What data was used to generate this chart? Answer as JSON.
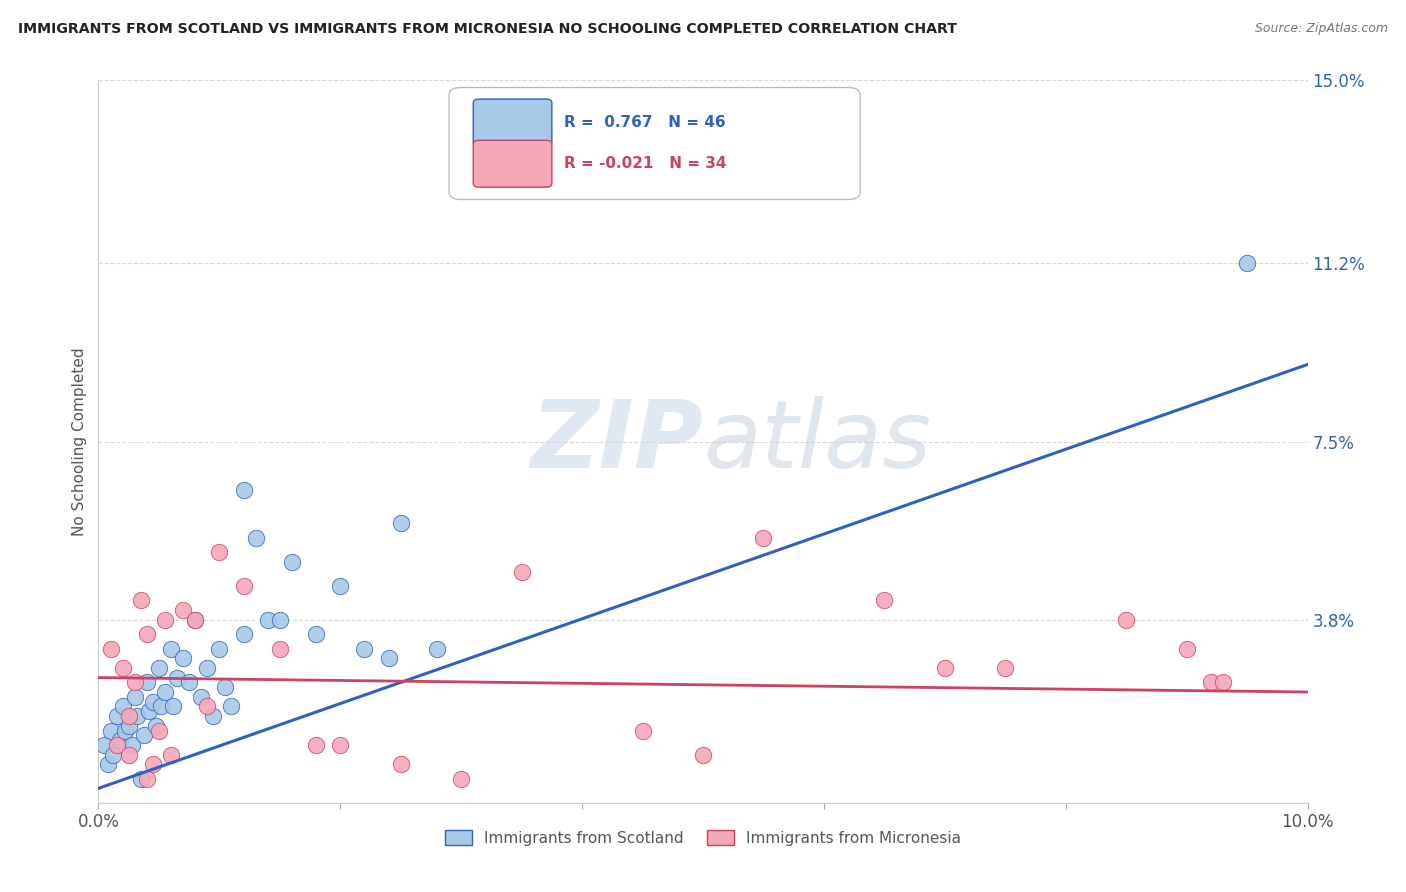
{
  "title": "IMMIGRANTS FROM SCOTLAND VS IMMIGRANTS FROM MICRONESIA NO SCHOOLING COMPLETED CORRELATION CHART",
  "source": "Source: ZipAtlas.com",
  "ylabel": "No Schooling Completed",
  "xlim": [
    0.0,
    10.0
  ],
  "ylim": [
    0.0,
    15.0
  ],
  "xtick_vals": [
    0.0,
    2.0,
    4.0,
    6.0,
    8.0,
    10.0
  ],
  "xtick_labels": [
    "0.0%",
    "",
    "",
    "",
    "",
    "10.0%"
  ],
  "ytick_vals": [
    0.0,
    3.8,
    7.5,
    11.2,
    15.0
  ],
  "ytick_labels": [
    "",
    "3.8%",
    "7.5%",
    "11.2%",
    "15.0%"
  ],
  "scotland_color": "#a8c8e8",
  "micronesia_color": "#f4a8b8",
  "scotland_line_color": "#3060c0",
  "micronesia_line_color": "#d04060",
  "legend_r_scotland": "0.767",
  "legend_n_scotland": "46",
  "legend_r_micronesia": "-0.021",
  "legend_n_micronesia": "34",
  "watermark": "ZIPatlas",
  "scotland_x": [
    0.05,
    0.08,
    0.1,
    0.12,
    0.15,
    0.18,
    0.2,
    0.22,
    0.25,
    0.28,
    0.3,
    0.32,
    0.35,
    0.38,
    0.4,
    0.42,
    0.45,
    0.48,
    0.5,
    0.52,
    0.55,
    0.6,
    0.62,
    0.65,
    0.7,
    0.75,
    0.8,
    0.85,
    0.9,
    0.95,
    1.0,
    1.05,
    1.1,
    1.2,
    1.3,
    1.4,
    1.5,
    1.6,
    1.8,
    2.0,
    2.2,
    2.4,
    2.5,
    2.8,
    9.5,
    1.2
  ],
  "scotland_y": [
    1.2,
    0.8,
    1.5,
    1.0,
    1.8,
    1.3,
    2.0,
    1.5,
    1.6,
    1.2,
    2.2,
    1.8,
    0.5,
    1.4,
    2.5,
    1.9,
    2.1,
    1.6,
    2.8,
    2.0,
    2.3,
    3.2,
    2.0,
    2.6,
    3.0,
    2.5,
    3.8,
    2.2,
    2.8,
    1.8,
    3.2,
    2.4,
    2.0,
    3.5,
    5.5,
    3.8,
    3.8,
    5.0,
    3.5,
    4.5,
    3.2,
    3.0,
    5.8,
    3.2,
    11.2,
    6.5
  ],
  "micronesia_x": [
    0.1,
    0.15,
    0.2,
    0.25,
    0.3,
    0.35,
    0.4,
    0.45,
    0.5,
    0.6,
    0.7,
    0.8,
    0.9,
    1.0,
    1.2,
    1.5,
    2.0,
    2.5,
    3.5,
    4.5,
    5.0,
    5.5,
    6.5,
    7.0,
    7.5,
    8.5,
    9.0,
    9.2,
    9.3,
    0.25,
    0.4,
    0.55,
    1.8,
    3.0
  ],
  "micronesia_y": [
    3.2,
    1.2,
    2.8,
    1.8,
    2.5,
    4.2,
    3.5,
    0.8,
    1.5,
    1.0,
    4.0,
    3.8,
    2.0,
    5.2,
    4.5,
    3.2,
    1.2,
    0.8,
    4.8,
    1.5,
    1.0,
    5.5,
    4.2,
    2.8,
    2.8,
    3.8,
    3.2,
    2.5,
    2.5,
    1.0,
    0.5,
    3.8,
    1.2,
    0.5
  ],
  "background_color": "#ffffff",
  "grid_color": "#d8d8d8"
}
